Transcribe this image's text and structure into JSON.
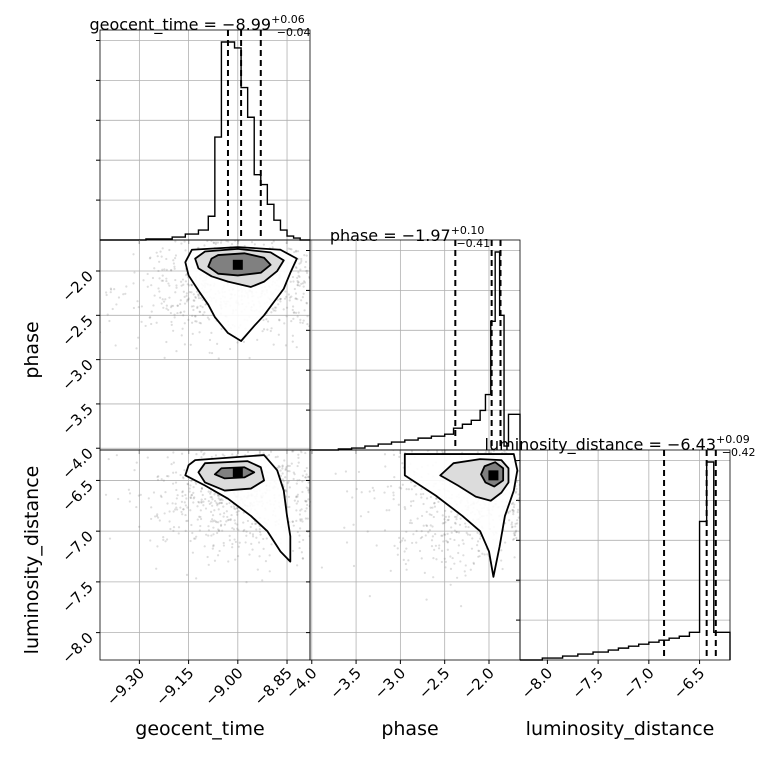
{
  "chart_data": {
    "type": "corner",
    "parameters": [
      "geocent_time",
      "phase",
      "luminosity_distance"
    ],
    "titles": [
      {
        "param": "geocent_time",
        "prefix": "geocent_time = ",
        "median": "−8.99",
        "plus": "+0.06",
        "minus": "−0.04"
      },
      {
        "param": "phase",
        "prefix": "phase = ",
        "median": "−1.97",
        "plus": "+0.10",
        "minus": "−0.41"
      },
      {
        "param": "luminosity_distance",
        "prefix": "luminosity_distance = ",
        "median": "−6.43",
        "plus": "+0.09",
        "minus": "−0.42"
      }
    ],
    "ranges": {
      "geocent_time": [
        -9.42,
        -8.78
      ],
      "phase": [
        -4.02,
        -1.65
      ],
      "luminosity_distance": [
        -8.27,
        -6.2
      ]
    },
    "ticks": {
      "geocent_time": {
        "values": [
          -9.3,
          -9.15,
          -9.0,
          -8.85
        ],
        "labels": [
          "−9.30",
          "−9.15",
          "−9.00",
          "−8.85"
        ]
      },
      "phase": {
        "values": [
          -4.0,
          -3.5,
          -3.0,
          -2.5,
          -2.0
        ],
        "labels": [
          "−4.0",
          "−3.5",
          "−3.0",
          "−2.5",
          "−2.0"
        ]
      },
      "luminosity_distance": {
        "values": [
          -8.0,
          -7.5,
          -7.0,
          -6.5
        ],
        "labels": [
          "−8.0",
          "−7.5",
          "−7.0",
          "−6.5"
        ]
      }
    },
    "quantiles": {
      "geocent_time": [
        -9.03,
        -8.99,
        -8.93
      ],
      "phase": [
        -2.38,
        -1.97,
        -1.87
      ],
      "luminosity_distance": [
        -6.85,
        -6.43,
        -6.34
      ]
    },
    "histograms": {
      "geocent_time": {
        "edges": [
          -9.42,
          -9.28,
          -9.2,
          -9.16,
          -9.12,
          -9.09,
          -9.07,
          -9.05,
          -9.03,
          -9.01,
          -8.99,
          -8.97,
          -8.95,
          -8.93,
          -8.91,
          -8.89,
          -8.87,
          -8.85,
          -8.83,
          -8.81,
          -8.78
        ],
        "counts": [
          0,
          0.5,
          1.5,
          3,
          5,
          12,
          52,
          100,
          100,
          97,
          77,
          62,
          33,
          28,
          18,
          10,
          5,
          2,
          1,
          0
        ]
      },
      "phase": {
        "edges": [
          -4.02,
          -3.7,
          -3.55,
          -3.4,
          -3.25,
          -3.1,
          -2.95,
          -2.8,
          -2.65,
          -2.5,
          -2.4,
          -2.3,
          -2.2,
          -2.1,
          -2.04,
          -1.98,
          -1.93,
          -1.88,
          -1.83,
          -1.78,
          -1.72,
          -1.65
        ],
        "counts": [
          0,
          0.5,
          1,
          2,
          3,
          4,
          5,
          6,
          7,
          8,
          11,
          13,
          15,
          20,
          28,
          65,
          100,
          68,
          2,
          18,
          18
        ]
      },
      "luminosity_distance": {
        "edges": [
          -8.27,
          -8.05,
          -7.85,
          -7.7,
          -7.55,
          -7.4,
          -7.3,
          -7.2,
          -7.1,
          -7.0,
          -6.9,
          -6.8,
          -6.7,
          -6.6,
          -6.5,
          -6.43,
          -6.36,
          -6.28,
          -6.2
        ],
        "counts": [
          0,
          1,
          2,
          3,
          4,
          5,
          6,
          7,
          8,
          9,
          10,
          11,
          12,
          14,
          70,
          100,
          14,
          14
        ]
      }
    },
    "contours_2d": [
      {
        "x": "geocent_time",
        "y": "phase",
        "peak": [
          -9.0,
          -1.93
        ],
        "levels": [
          [
            [
              -9.06,
              -1.82
            ],
            [
              -8.98,
              -1.8
            ],
            [
              -8.92,
              -1.85
            ],
            [
              -8.9,
              -1.93
            ],
            [
              -8.93,
              -2.02
            ],
            [
              -9.0,
              -2.05
            ],
            [
              -9.06,
              -2.03
            ],
            [
              -9.09,
              -1.95
            ],
            [
              -9.08,
              -1.86
            ]
          ],
          [
            [
              -9.1,
              -1.78
            ],
            [
              -9.0,
              -1.75
            ],
            [
              -8.9,
              -1.79
            ],
            [
              -8.86,
              -1.88
            ],
            [
              -8.88,
              -2.0
            ],
            [
              -8.92,
              -2.12
            ],
            [
              -8.96,
              -2.18
            ],
            [
              -9.03,
              -2.12
            ],
            [
              -9.08,
              -2.06
            ],
            [
              -9.12,
              -1.97
            ],
            [
              -9.13,
              -1.86
            ]
          ],
          [
            [
              -9.14,
              -1.76
            ],
            [
              -9.0,
              -1.73
            ],
            [
              -8.87,
              -1.76
            ],
            [
              -8.82,
              -1.86
            ],
            [
              -8.84,
              -2.02
            ],
            [
              -8.86,
              -2.2
            ],
            [
              -8.89,
              -2.35
            ],
            [
              -8.92,
              -2.5
            ],
            [
              -8.95,
              -2.62
            ],
            [
              -8.99,
              -2.79
            ],
            [
              -9.03,
              -2.7
            ],
            [
              -9.07,
              -2.52
            ],
            [
              -9.09,
              -2.38
            ],
            [
              -9.12,
              -2.22
            ],
            [
              -9.15,
              -2.05
            ],
            [
              -9.16,
              -1.9
            ]
          ]
        ]
      },
      {
        "x": "geocent_time",
        "y": "luminosity_distance",
        "peak": [
          -9.0,
          -6.42
        ],
        "levels": [
          [
            [
              -9.05,
              -6.38
            ],
            [
              -8.98,
              -6.37
            ],
            [
              -8.95,
              -6.42
            ],
            [
              -8.98,
              -6.47
            ],
            [
              -9.04,
              -6.48
            ],
            [
              -9.07,
              -6.44
            ]
          ],
          [
            [
              -9.1,
              -6.33
            ],
            [
              -8.97,
              -6.31
            ],
            [
              -8.93,
              -6.37
            ],
            [
              -8.92,
              -6.5
            ],
            [
              -8.96,
              -6.58
            ],
            [
              -9.04,
              -6.6
            ],
            [
              -9.1,
              -6.52
            ],
            [
              -9.12,
              -6.42
            ]
          ],
          [
            [
              -9.13,
              -6.3
            ],
            [
              -8.92,
              -6.25
            ],
            [
              -8.88,
              -6.4
            ],
            [
              -8.86,
              -6.6
            ],
            [
              -8.85,
              -6.85
            ],
            [
              -8.84,
              -7.05
            ],
            [
              -8.84,
              -7.3
            ],
            [
              -8.87,
              -7.2
            ],
            [
              -8.91,
              -7.0
            ],
            [
              -8.96,
              -6.85
            ],
            [
              -9.03,
              -6.68
            ],
            [
              -9.1,
              -6.55
            ],
            [
              -9.16,
              -6.45
            ],
            [
              -9.15,
              -6.35
            ]
          ]
        ]
      },
      {
        "x": "phase",
        "y": "luminosity_distance",
        "peak": [
          -1.95,
          -6.45
        ],
        "levels": [
          [
            [
              -2.05,
              -6.36
            ],
            [
              -1.93,
              -6.32
            ],
            [
              -1.84,
              -6.38
            ],
            [
              -1.84,
              -6.5
            ],
            [
              -1.94,
              -6.56
            ],
            [
              -2.04,
              -6.52
            ],
            [
              -2.09,
              -6.44
            ]
          ],
          [
            [
              -2.4,
              -6.33
            ],
            [
              -2.1,
              -6.29
            ],
            [
              -1.86,
              -6.3
            ],
            [
              -1.78,
              -6.38
            ],
            [
              -1.78,
              -6.52
            ],
            [
              -1.86,
              -6.62
            ],
            [
              -1.98,
              -6.7
            ],
            [
              -2.15,
              -6.66
            ],
            [
              -2.35,
              -6.55
            ],
            [
              -2.55,
              -6.45
            ]
          ],
          [
            [
              -2.95,
              -6.24
            ],
            [
              -1.72,
              -6.24
            ],
            [
              -1.68,
              -6.4
            ],
            [
              -1.72,
              -6.6
            ],
            [
              -1.82,
              -6.85
            ],
            [
              -1.88,
              -7.15
            ],
            [
              -1.95,
              -7.45
            ],
            [
              -2.0,
              -7.2
            ],
            [
              -2.1,
              -7.0
            ],
            [
              -2.3,
              -6.85
            ],
            [
              -2.6,
              -6.65
            ],
            [
              -2.95,
              -6.45
            ]
          ]
        ]
      }
    ],
    "grid": true
  }
}
